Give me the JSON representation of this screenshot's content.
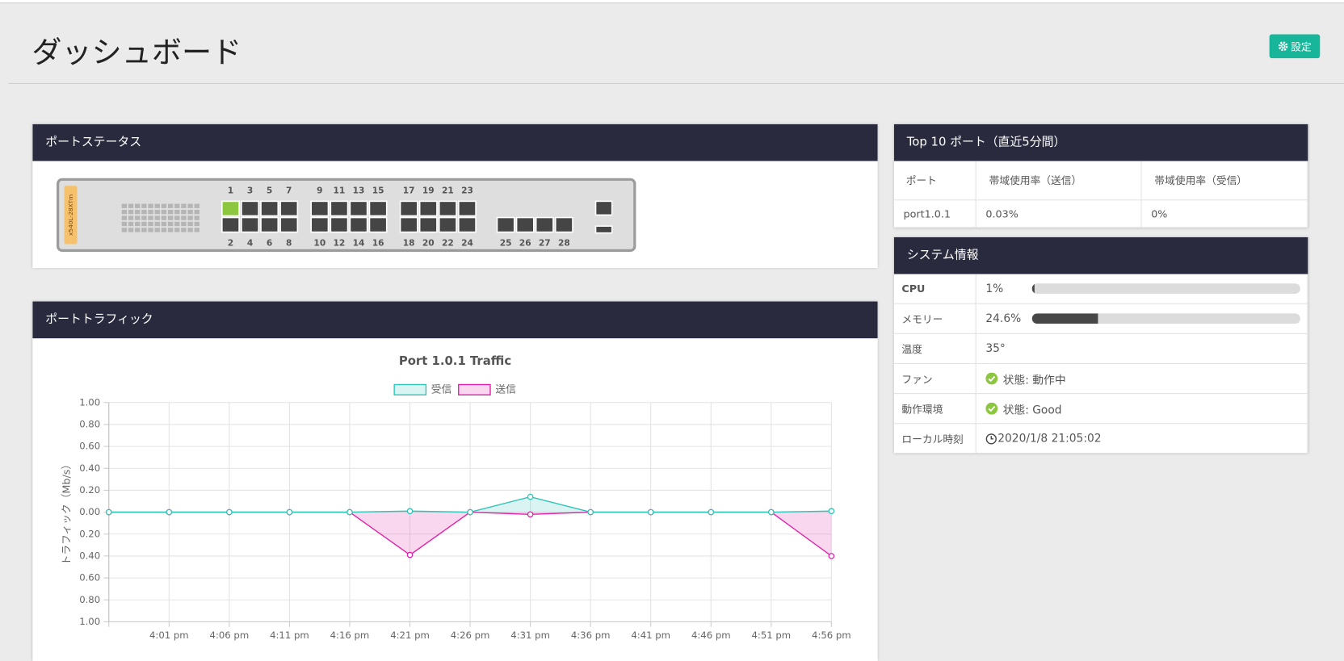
{
  "header": {
    "title": "ダッシュボード",
    "settings": "設定"
  },
  "port_status": {
    "title": "ポートステータス",
    "model": "x540L-28XTm",
    "top_row": [
      "1",
      "3",
      "5",
      "7",
      "9",
      "11",
      "13",
      "15",
      "17",
      "19",
      "21",
      "23"
    ],
    "bottom_row": [
      "2",
      "4",
      "6",
      "8",
      "10",
      "12",
      "14",
      "16",
      "18",
      "20",
      "22",
      "24"
    ],
    "sfp": [
      "25",
      "26",
      "27",
      "28"
    ],
    "link_up": [
      "1"
    ],
    "link_up_color": "#8dc63f",
    "link_down_color": "#454545"
  },
  "port_traffic": {
    "title": "ポートトラフィック"
  },
  "top10": {
    "title": "Top 10 ポート（直近5分間）",
    "columns": [
      "ポート",
      "帯域使用率（送信）",
      "帯域使用率（受信）"
    ],
    "rows": [
      [
        "port1.0.1",
        "0.03%",
        "0%"
      ]
    ]
  },
  "system": {
    "title": "システム情報",
    "gauge_lim": [
      0,
      100
    ],
    "rows": [
      {
        "label": "CPU",
        "value": 1,
        "value_label": "1%"
      },
      {
        "label": "メモリー",
        "value": 24.6,
        "value_label": "24.6%"
      },
      {
        "label": "温度",
        "text": "35°"
      },
      {
        "label": "ファン",
        "status": "状態: 動作中"
      },
      {
        "label": "動作環境",
        "status": "状態: Good"
      },
      {
        "label": "ローカル時刻",
        "time": "2020/1/8 21:05:02"
      }
    ]
  },
  "chart_data": {
    "type": "line",
    "title": "Port 1.0.1 Traffic",
    "y_label": "トラフィック（Mb/s）",
    "categories": [
      null,
      "4:01 pm",
      "4:06 pm",
      "4:11 pm",
      "4:16 pm",
      "4:21 pm",
      "4:26 pm",
      "4:31 pm",
      "4:36 pm",
      "4:41 pm",
      "4:46 pm",
      "4:51 pm",
      "4:56 pm"
    ],
    "series": [
      {
        "name": "受信",
        "color": "#2ec4b6",
        "values": [
          0,
          0,
          0,
          0,
          0,
          0.01,
          0,
          0.14,
          0,
          0,
          0,
          0,
          0.01
        ]
      },
      {
        "name": "送信",
        "color": "#e020a8",
        "values": [
          0,
          0,
          0,
          0,
          0,
          -0.39,
          0,
          -0.02,
          0,
          0,
          0,
          0,
          -0.4
        ]
      }
    ],
    "ylim": [
      -1,
      1
    ],
    "yticks": [
      {
        "value": 1,
        "label": "1.00"
      },
      {
        "value": 0.8,
        "label": "0.80"
      },
      {
        "value": 0.6,
        "label": "0.60"
      },
      {
        "value": 0.4,
        "label": "0.40"
      },
      {
        "value": 0.2,
        "label": "0.20"
      },
      {
        "value": 0,
        "label": "0.00"
      },
      {
        "value": -0.2,
        "label": "0.20"
      },
      {
        "value": -0.4,
        "label": "0.40"
      },
      {
        "value": -0.6,
        "label": "0.60"
      },
      {
        "value": -0.8,
        "label": "0.80"
      },
      {
        "value": -1,
        "label": "1.00"
      }
    ],
    "grid": true,
    "legend": "top"
  }
}
